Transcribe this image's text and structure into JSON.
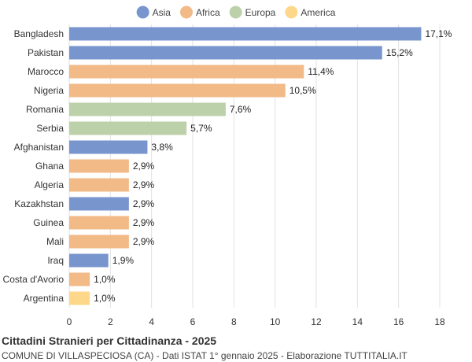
{
  "chart_data": {
    "type": "bar",
    "orientation": "horizontal",
    "title": "Cittadini Stranieri per Cittadinanza - 2025",
    "subtitle": "COMUNE DI VILLASPECIOSA (CA) - Dati ISTAT 1° gennaio 2025 - Elaborazione TUTTITALIA.IT",
    "legend_position": "top-center",
    "legend": [
      {
        "name": "Asia",
        "color": "#7896cd"
      },
      {
        "name": "Africa",
        "color": "#f2ba87"
      },
      {
        "name": "Europa",
        "color": "#bcd1a9"
      },
      {
        "name": "America",
        "color": "#fdd88a"
      }
    ],
    "categories": [
      "Bangladesh",
      "Pakistan",
      "Marocco",
      "Nigeria",
      "Romania",
      "Serbia",
      "Afghanistan",
      "Ghana",
      "Algeria",
      "Kazakhstan",
      "Guinea",
      "Mali",
      "Iraq",
      "Costa d'Avorio",
      "Argentina"
    ],
    "values": [
      17.1,
      15.2,
      11.4,
      10.5,
      7.6,
      5.7,
      3.8,
      2.9,
      2.9,
      2.9,
      2.9,
      2.9,
      1.9,
      1.0,
      1.0
    ],
    "value_labels": [
      "17,1%",
      "15,2%",
      "11,4%",
      "10,5%",
      "7,6%",
      "5,7%",
      "3,8%",
      "2,9%",
      "2,9%",
      "2,9%",
      "2,9%",
      "2,9%",
      "1,9%",
      "1,0%",
      "1,0%"
    ],
    "continents": [
      "Asia",
      "Asia",
      "Africa",
      "Africa",
      "Europa",
      "Europa",
      "Asia",
      "Africa",
      "Africa",
      "Asia",
      "Africa",
      "Africa",
      "Asia",
      "Africa",
      "America"
    ],
    "xlim": [
      0,
      18
    ],
    "xticks": [
      0,
      2,
      4,
      6,
      8,
      10,
      12,
      14,
      16,
      18
    ],
    "grid": true
  }
}
